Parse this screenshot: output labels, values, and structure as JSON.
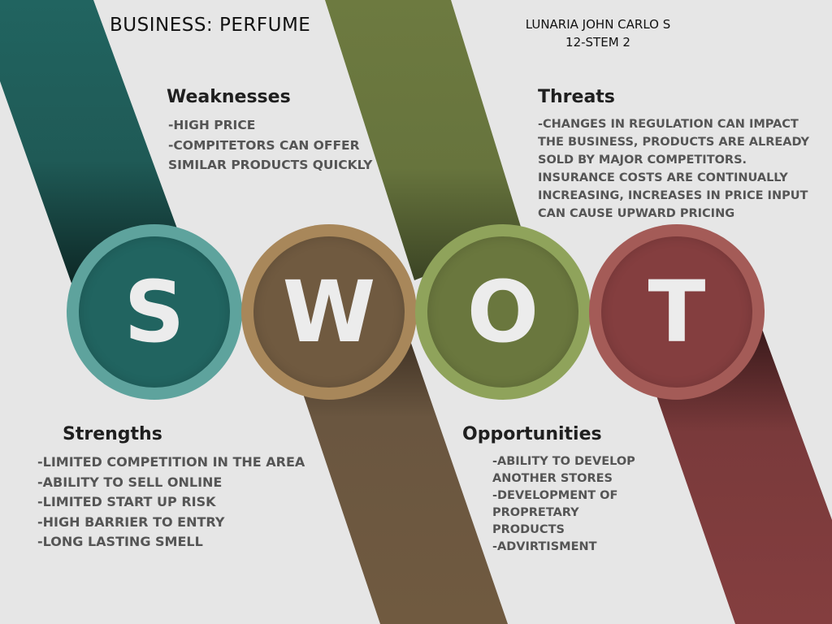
{
  "header": {
    "business": "BUSINESS: PERFUME",
    "author": "LUNARIA JOHN CARLO S",
    "section": "12-STEM 2"
  },
  "colors": {
    "background": "#e6e6e6",
    "strengths": "#216460",
    "weaknesses": "#705a40",
    "opportunities": "#6a773e",
    "threats": "#843e3f"
  },
  "swot": {
    "s": {
      "letter": "S",
      "title": "Strengths",
      "items": [
        "-LIMITED COMPETITION IN THE AREA",
        "-ABILITY TO SELL ONLINE",
        "-LIMITED START UP RISK",
        "-HIGH BARRIER TO ENTRY",
        "-LONG LASTING SMELL"
      ]
    },
    "w": {
      "letter": "W",
      "title": "Weaknesses",
      "items": [
        "-HIGH PRICE",
        "-COMPITETORS CAN OFFER SIMILAR PRODUCTS QUICKLY"
      ]
    },
    "o": {
      "letter": "O",
      "title": "Opportunities",
      "items": [
        "-ABILITY TO DEVELOP ANOTHER STORES",
        "-DEVELOPMENT OF PROPRETARY PRODUCTS",
        "-ADVIRTISMENT"
      ]
    },
    "t": {
      "letter": "T",
      "title": "Threats",
      "items": [
        "-CHANGES IN REGULATION CAN IMPACT THE BUSINESS, PRODUCTS ARE ALREADY SOLD BY MAJOR COMPETITORS. INSURANCE COSTS ARE CONTINUALLY INCREASING, INCREASES IN PRICE INPUT CAN CAUSE UPWARD PRICING"
      ]
    }
  }
}
